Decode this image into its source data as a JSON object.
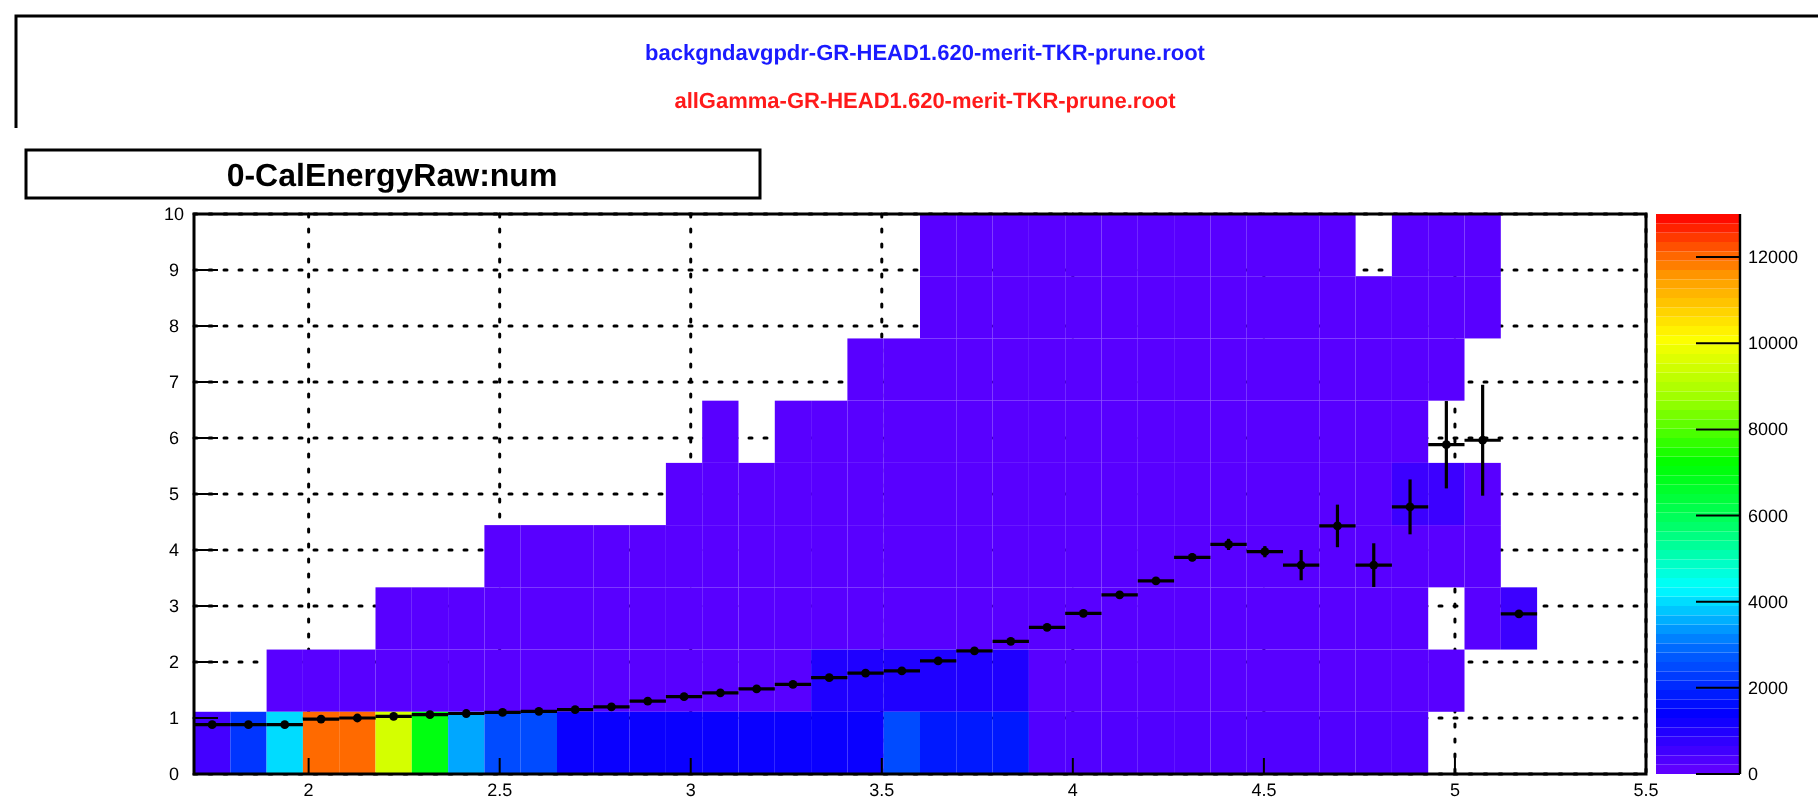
{
  "chart_data": {
    "type": "heatmap",
    "title": "0-CalEnergyRaw:num",
    "annotations": [
      "backgndavgpdr-GR-HEAD1.620-merit-TKR-prune.root",
      "allGamma-GR-HEAD1.620-merit-TKR-prune.root"
    ],
    "x": [
      1.7475,
      1.8425,
      1.9375,
      2.0325,
      2.1275,
      2.2225,
      2.3175,
      2.4125,
      2.5075,
      2.6025,
      2.6975,
      2.7925,
      2.8875,
      2.9825,
      3.0775,
      3.1725,
      3.2675,
      3.3625,
      3.4575,
      3.5525,
      3.6475,
      3.7425,
      3.8375,
      3.9325,
      4.0275,
      4.1225,
      4.2175,
      4.3125,
      4.4075,
      4.5025,
      4.5975,
      4.6925,
      4.7875,
      4.8825,
      4.9775,
      5.0725,
      5.1675
    ],
    "xlim": [
      1.7,
      5.5
    ],
    "xticks": [
      2,
      2.5,
      3,
      3.5,
      4,
      4.5,
      5,
      5.5
    ],
    "ylim": [
      0,
      10
    ],
    "yticks": [
      0,
      1,
      2,
      3,
      4,
      5,
      6,
      7,
      8,
      9,
      10
    ],
    "grid": true,
    "clim": [
      0,
      13000
    ],
    "cticks": [
      0,
      2000,
      4000,
      6000,
      8000,
      10000,
      12000
    ],
    "cells": [
      [
        null,
        null,
        null,
        null,
        null,
        null,
        null,
        null,
        null,
        null,
        null,
        null,
        null,
        null,
        null,
        null,
        null,
        null,
        null,
        null,
        200,
        200,
        200,
        200,
        200,
        200,
        200,
        200,
        200,
        200,
        200,
        200,
        null,
        200,
        200,
        200,
        null
      ],
      [
        null,
        null,
        null,
        null,
        null,
        null,
        null,
        null,
        null,
        null,
        null,
        null,
        null,
        null,
        null,
        null,
        null,
        null,
        null,
        null,
        200,
        200,
        200,
        200,
        200,
        200,
        200,
        200,
        200,
        200,
        200,
        200,
        200,
        200,
        200,
        200,
        null
      ],
      [
        null,
        null,
        null,
        null,
        null,
        null,
        null,
        null,
        null,
        null,
        null,
        null,
        null,
        null,
        null,
        null,
        null,
        null,
        200,
        200,
        200,
        200,
        200,
        200,
        200,
        200,
        200,
        200,
        200,
        200,
        200,
        200,
        200,
        200,
        200,
        null,
        null
      ],
      [
        null,
        null,
        null,
        null,
        null,
        null,
        null,
        null,
        null,
        null,
        null,
        null,
        null,
        null,
        200,
        null,
        200,
        200,
        200,
        200,
        200,
        200,
        200,
        200,
        200,
        200,
        200,
        200,
        200,
        200,
        200,
        200,
        200,
        200,
        null,
        null,
        null
      ],
      [
        null,
        null,
        null,
        null,
        null,
        null,
        null,
        null,
        null,
        null,
        null,
        null,
        null,
        200,
        200,
        200,
        200,
        200,
        200,
        200,
        200,
        200,
        200,
        200,
        200,
        200,
        200,
        200,
        200,
        200,
        200,
        200,
        200,
        600,
        600,
        200,
        null
      ],
      [
        null,
        null,
        null,
        null,
        null,
        null,
        null,
        null,
        200,
        200,
        200,
        200,
        200,
        200,
        200,
        200,
        200,
        200,
        200,
        200,
        200,
        200,
        200,
        200,
        200,
        200,
        200,
        200,
        200,
        200,
        200,
        200,
        200,
        200,
        200,
        200,
        null
      ],
      [
        null,
        null,
        null,
        null,
        null,
        200,
        200,
        200,
        200,
        200,
        200,
        200,
        200,
        200,
        200,
        200,
        200,
        200,
        200,
        200,
        200,
        200,
        200,
        200,
        200,
        200,
        200,
        200,
        200,
        200,
        200,
        200,
        200,
        200,
        null,
        200,
        600
      ],
      [
        null,
        null,
        200,
        200,
        200,
        200,
        200,
        200,
        200,
        200,
        200,
        200,
        200,
        200,
        200,
        200,
        200,
        1000,
        1000,
        1000,
        1000,
        1000,
        1000,
        200,
        200,
        200,
        200,
        200,
        200,
        200,
        200,
        200,
        200,
        200,
        200,
        null,
        null
      ],
      [
        500,
        2200,
        4000,
        12000,
        12000,
        9500,
        7000,
        3500,
        2500,
        2500,
        1300,
        1300,
        1300,
        1300,
        1300,
        1300,
        1300,
        1300,
        1300,
        2500,
        1800,
        1800,
        1800,
        300,
        300,
        300,
        300,
        300,
        300,
        300,
        300,
        300,
        300,
        300,
        null,
        null,
        null
      ]
    ],
    "series": [
      {
        "type": "scatter",
        "color": "#000000",
        "marker": "circle",
        "x": [
          1.7475,
          1.8425,
          1.9375,
          2.0325,
          2.1275,
          2.2225,
          2.3175,
          2.4125,
          2.5075,
          2.6025,
          2.6975,
          2.7925,
          2.8875,
          2.9825,
          3.0775,
          3.1725,
          3.2675,
          3.3625,
          3.4575,
          3.5525,
          3.6475,
          3.7425,
          3.8375,
          3.9325,
          4.0275,
          4.1225,
          4.2175,
          4.3125,
          4.4075,
          4.5025,
          4.5975,
          4.6925,
          4.7875,
          4.8825,
          4.9775,
          5.0725,
          5.1675
        ],
        "values": [
          0.88,
          0.88,
          0.88,
          0.98,
          1.0,
          1.03,
          1.06,
          1.08,
          1.1,
          1.12,
          1.15,
          1.2,
          1.3,
          1.38,
          1.45,
          1.52,
          1.6,
          1.72,
          1.8,
          1.84,
          2.02,
          2.2,
          2.37,
          2.62,
          2.87,
          3.2,
          3.45,
          3.87,
          4.1,
          3.97,
          3.73,
          4.43,
          3.73,
          4.77,
          5.88,
          5.96,
          2.86
        ],
        "errors": [
          null,
          null,
          null,
          null,
          null,
          null,
          null,
          null,
          null,
          null,
          null,
          null,
          null,
          null,
          null,
          null,
          null,
          null,
          null,
          null,
          null,
          null,
          null,
          0.03,
          0.04,
          0.05,
          0.05,
          0.07,
          0.1,
          0.1,
          0.27,
          0.38,
          0.39,
          0.49,
          0.78,
          0.99,
          null
        ],
        "xerrors": [
          0.0475,
          0.0475,
          0.0475,
          0.0475,
          0.0475,
          0.0475,
          0.0475,
          0.0475,
          0.0475,
          0.0475,
          0.0475,
          0.0475,
          0.0475,
          0.0475,
          0.0475,
          0.0475,
          0.0475,
          0.0475,
          0.0475,
          0.0475,
          0.0475,
          0.0475,
          0.0475,
          0.0475,
          0.0475,
          0.0475,
          0.0475,
          0.0475,
          0.0475,
          0.0475,
          0.0475,
          0.0475,
          0.0475,
          0.0475,
          0.0475,
          0.0475,
          0.0475
        ]
      }
    ]
  }
}
